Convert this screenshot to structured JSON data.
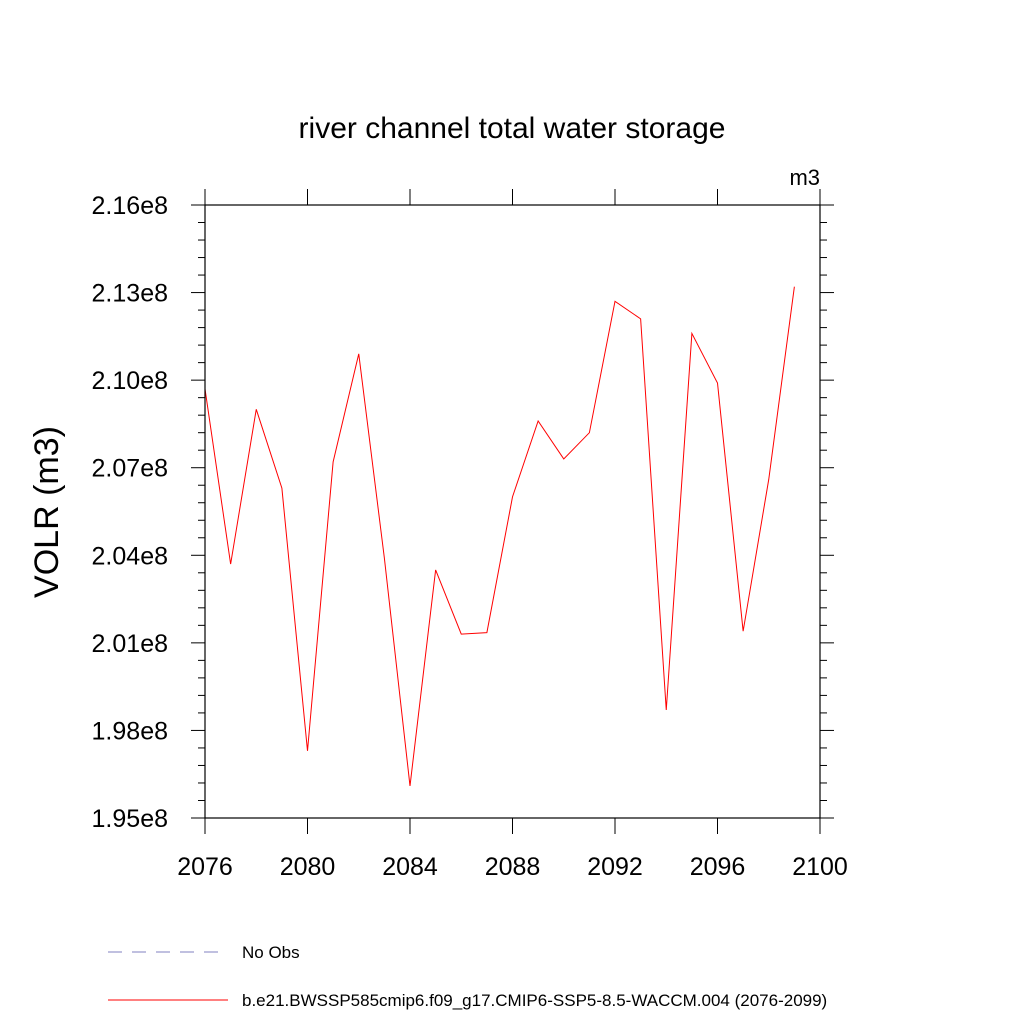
{
  "chart_data": {
    "type": "line",
    "title": "river channel total water storage",
    "units": "m3",
    "ylabel": "VOLR  (m3)",
    "xlabel": "",
    "xlim": [
      2076,
      2100
    ],
    "ylim": [
      195000000,
      216000000
    ],
    "x_ticks": [
      2076,
      2080,
      2084,
      2088,
      2092,
      2096,
      2100
    ],
    "x_tick_labels": [
      "2076",
      "2080",
      "2084",
      "2088",
      "2092",
      "2096",
      "2100"
    ],
    "y_ticks": [
      195000000,
      198000000,
      201000000,
      204000000,
      207000000,
      210000000,
      213000000,
      216000000
    ],
    "y_tick_labels": [
      "1.95e8",
      "1.98e8",
      "2.01e8",
      "2.04e8",
      "2.07e8",
      "2.10e8",
      "2.13e8",
      "2.16e8"
    ],
    "grid": false,
    "legend_placement": "bottom",
    "series": [
      {
        "name": "b.e21.BWSSP585cmip6.f09_g17.CMIP6-SSP5-8.5-WACCM.004 (2076-2099)",
        "color": "#ff0000",
        "style": "solid",
        "x": [
          2076,
          2077,
          2078,
          2079,
          2080,
          2081,
          2082,
          2083,
          2084,
          2085,
          2086,
          2087,
          2088,
          2089,
          2090,
          2091,
          2092,
          2093,
          2094,
          2095,
          2096,
          2097,
          2098,
          2099
        ],
        "values": [
          209700000,
          203700000,
          209000000,
          206300000,
          197300000,
          207200000,
          210900000,
          203900000,
          196100000,
          203500000,
          201300000,
          201350000,
          206000000,
          208600000,
          207300000,
          208200000,
          212700000,
          212100000,
          198700000,
          211600000,
          209900000,
          201400000,
          206600000,
          213200000
        ]
      }
    ],
    "legend": [
      {
        "label": "No Obs",
        "color": "#8080c0",
        "style": "dashed"
      },
      {
        "label": "b.e21.BWSSP585cmip6.f09_g17.CMIP6-SSP5-8.5-WACCM.004 (2076-2099)",
        "color": "#ff0000",
        "style": "solid"
      }
    ]
  }
}
